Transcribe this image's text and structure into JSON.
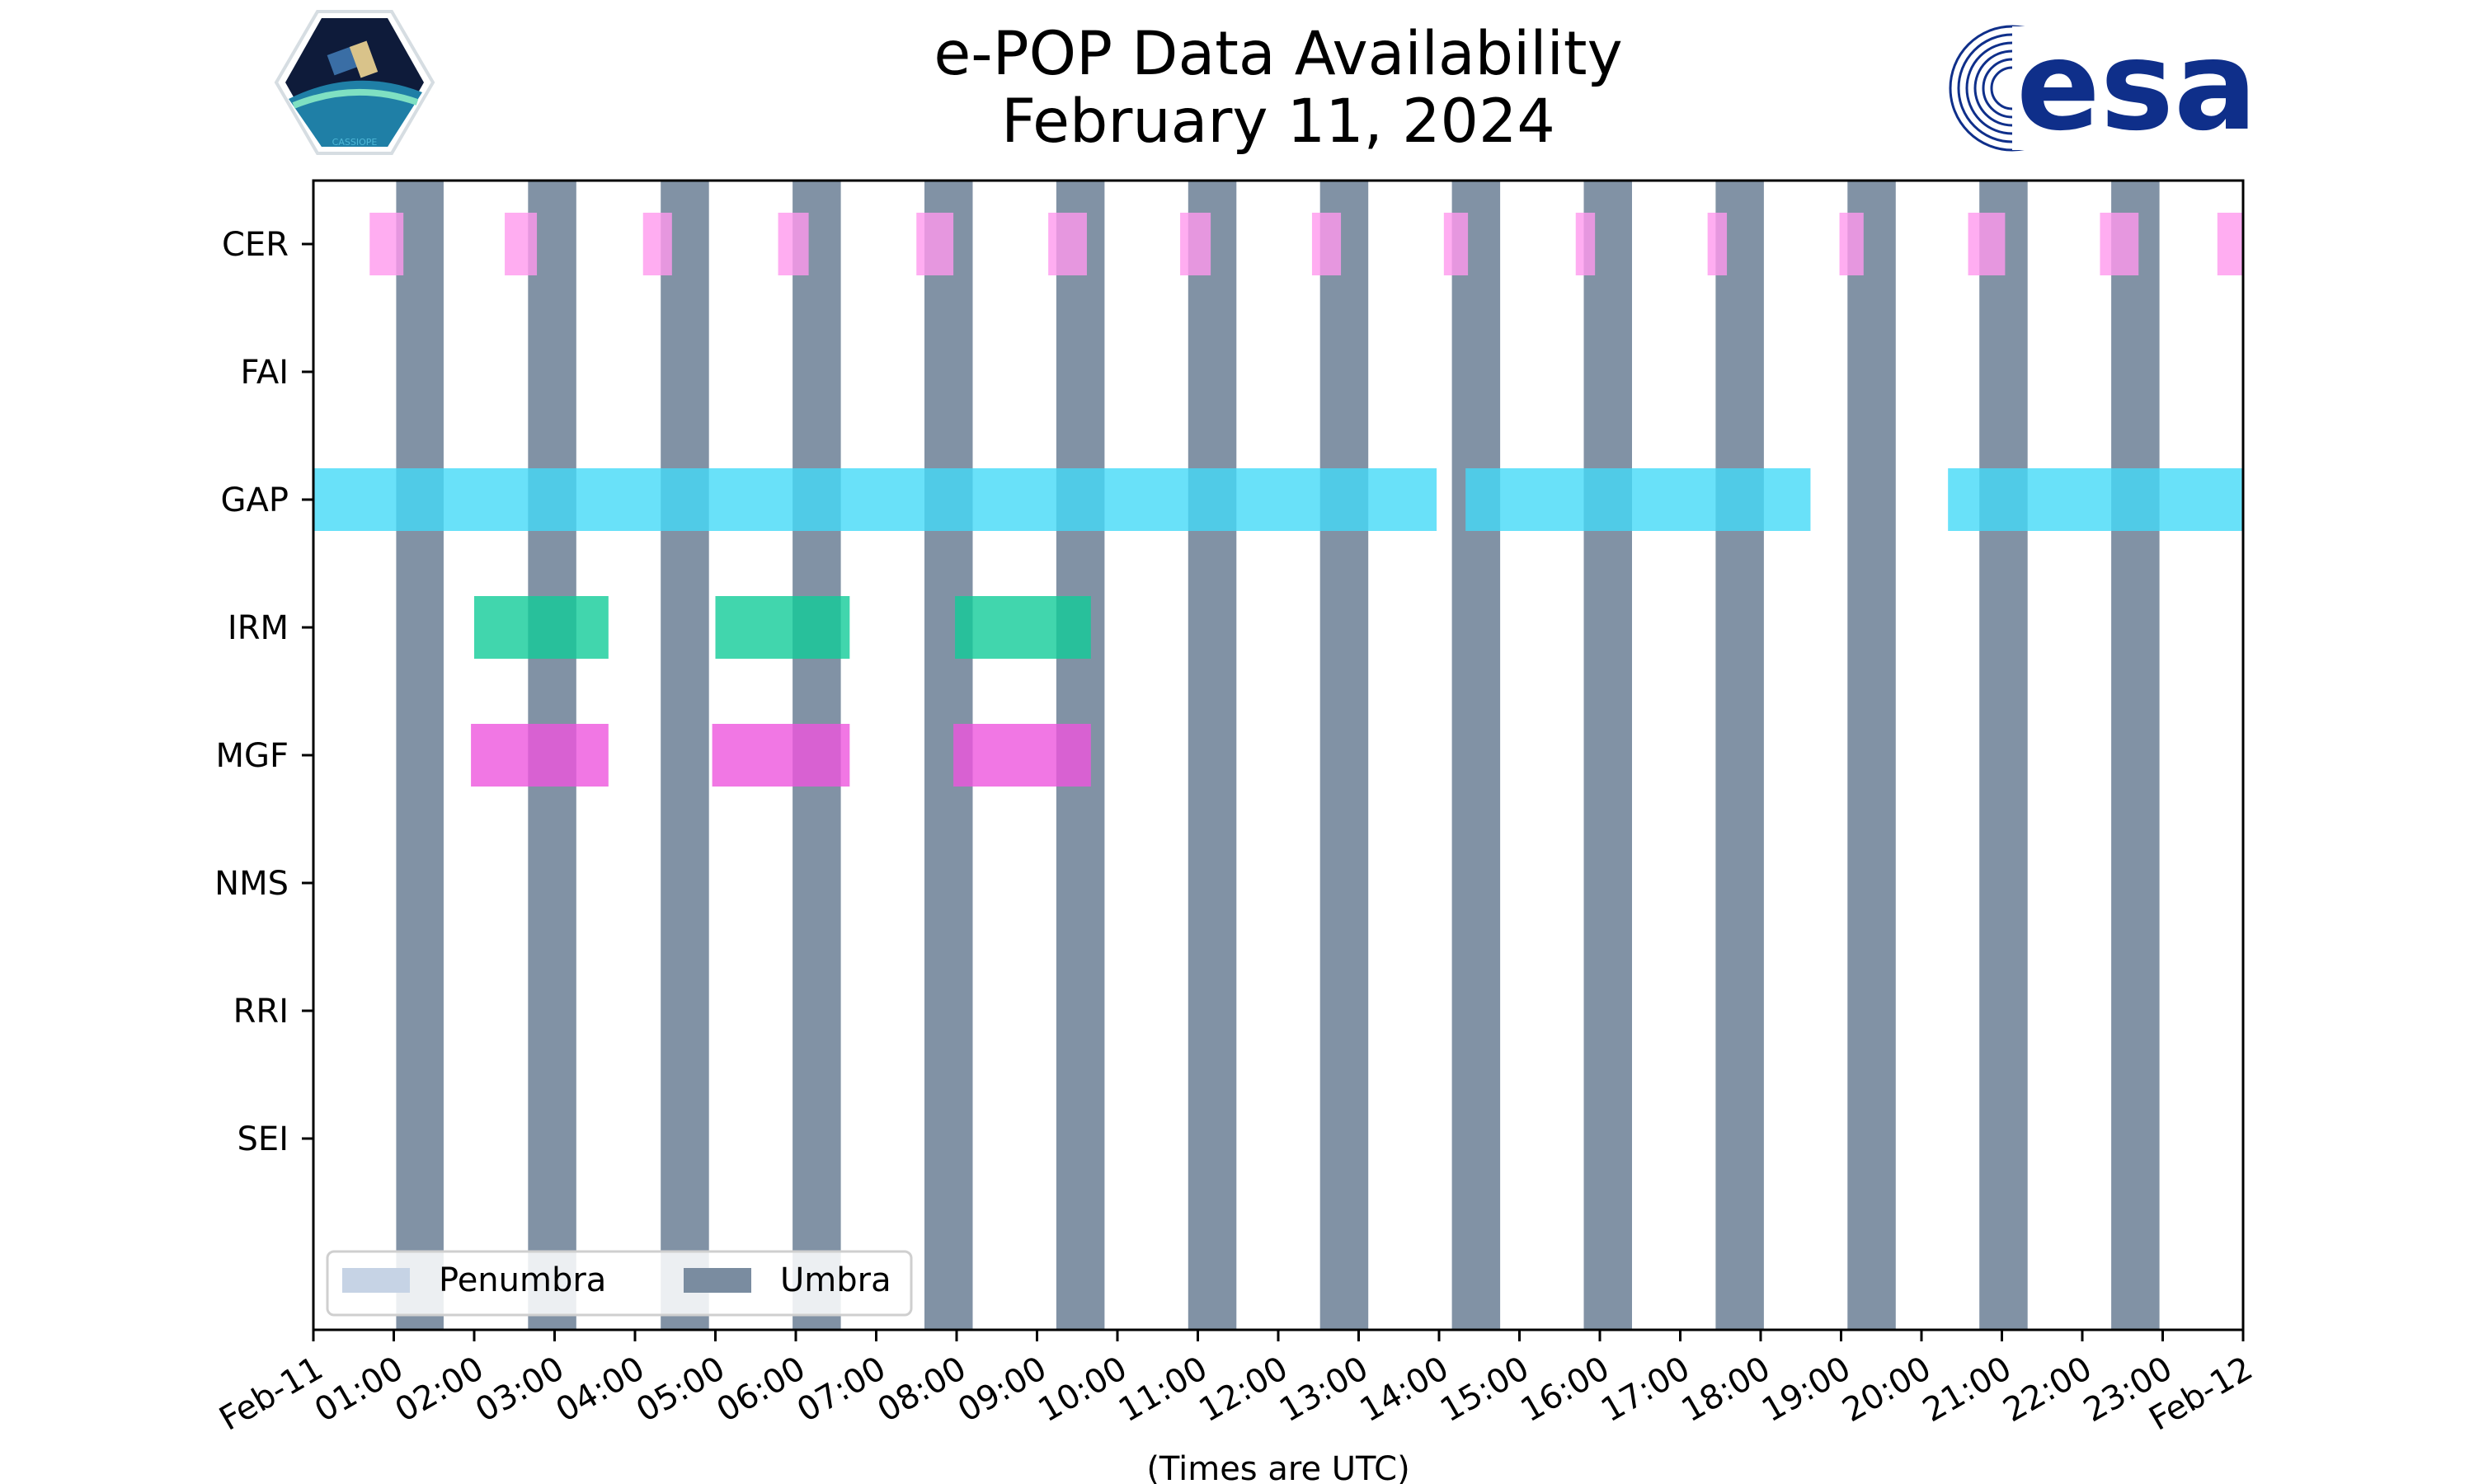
{
  "chart_data": {
    "type": "timeline",
    "title": "e-POP Data Availability",
    "subtitle": "February 11, 2024",
    "xlabel": "(Times are UTC)",
    "xlim_hours": [
      0,
      24
    ],
    "x_tick_labels": [
      "Feb-11",
      "01:00",
      "02:00",
      "03:00",
      "04:00",
      "05:00",
      "06:00",
      "07:00",
      "08:00",
      "09:00",
      "10:00",
      "11:00",
      "12:00",
      "13:00",
      "14:00",
      "15:00",
      "16:00",
      "17:00",
      "18:00",
      "19:00",
      "20:00",
      "21:00",
      "22:00",
      "23:00",
      "Feb-12"
    ],
    "instruments": [
      "CER",
      "FAI",
      "GAP",
      "IRM",
      "MGF",
      "NMS",
      "RRI",
      "SEI"
    ],
    "umbra_intervals": [
      [
        1.03,
        1.62
      ],
      [
        2.67,
        3.27
      ],
      [
        4.32,
        4.92
      ],
      [
        5.96,
        6.56
      ],
      [
        7.6,
        8.2
      ],
      [
        9.24,
        9.84
      ],
      [
        10.88,
        11.48
      ],
      [
        12.52,
        13.12
      ],
      [
        14.16,
        14.76
      ],
      [
        15.8,
        16.4
      ],
      [
        17.44,
        18.04
      ],
      [
        19.08,
        19.68
      ],
      [
        20.72,
        21.32
      ],
      [
        22.36,
        22.96
      ]
    ],
    "series": [
      {
        "name": "CER",
        "color": "#ff99ee",
        "intervals": [
          [
            0.7,
            1.12
          ],
          [
            2.38,
            2.78
          ],
          [
            4.1,
            4.46
          ],
          [
            5.78,
            6.16
          ],
          [
            7.5,
            7.96
          ],
          [
            9.14,
            9.62
          ],
          [
            10.78,
            11.16
          ],
          [
            12.42,
            12.78
          ],
          [
            14.06,
            14.36
          ],
          [
            15.7,
            15.94
          ],
          [
            17.34,
            17.58
          ],
          [
            18.98,
            19.28
          ],
          [
            20.58,
            21.04
          ],
          [
            22.22,
            22.7
          ],
          [
            23.68,
            24.0
          ]
        ]
      },
      {
        "name": "FAI",
        "color": "#cccccc",
        "intervals": []
      },
      {
        "name": "GAP",
        "color": "#44d9f7",
        "intervals": [
          [
            0.0,
            13.97
          ],
          [
            14.33,
            18.62
          ],
          [
            20.33,
            24.0
          ]
        ]
      },
      {
        "name": "IRM",
        "color": "#11cc99",
        "intervals": [
          [
            2.0,
            3.67
          ],
          [
            5.0,
            6.67
          ],
          [
            7.98,
            9.67
          ]
        ]
      },
      {
        "name": "MGF",
        "color": "#ee55dd",
        "intervals": [
          [
            1.96,
            3.67
          ],
          [
            4.96,
            6.67
          ],
          [
            7.96,
            9.67
          ]
        ]
      },
      {
        "name": "NMS",
        "color": "#cccccc",
        "intervals": []
      },
      {
        "name": "RRI",
        "color": "#cccccc",
        "intervals": []
      },
      {
        "name": "SEI",
        "color": "#cccccc",
        "intervals": []
      }
    ],
    "legend": {
      "location": "lower-left",
      "entries": [
        {
          "label": "Penumbra",
          "color": "#c6d3e5"
        },
        {
          "label": "Umbra",
          "color": "#7a8ca0"
        }
      ]
    },
    "umbra_color": "#7a8ca0",
    "umbra_opacity": 0.95
  },
  "logos": {
    "left_text": "CASSIOPE",
    "right_text": "esa",
    "esa_color": "#0f2f8a"
  }
}
